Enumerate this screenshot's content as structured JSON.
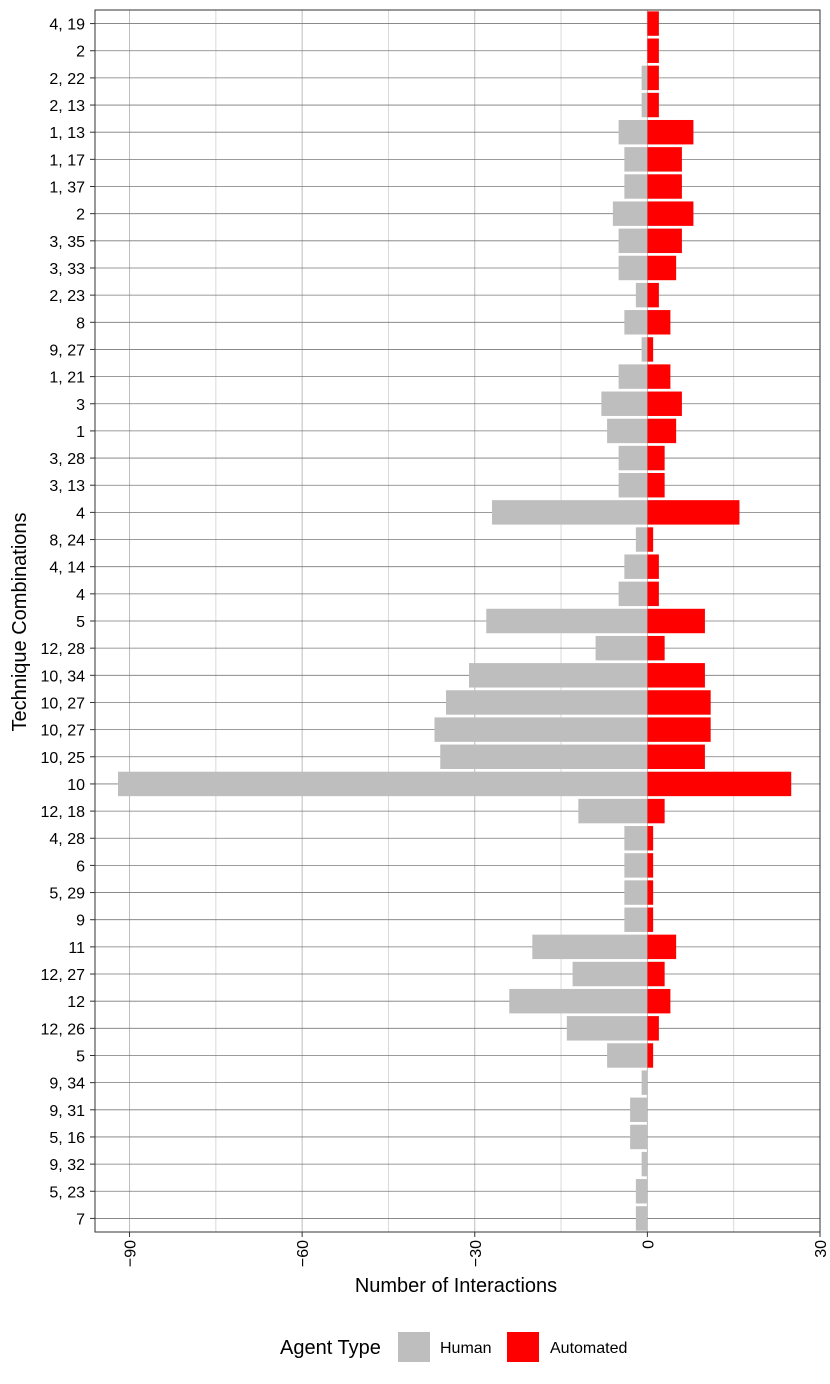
{
  "chart_data": {
    "type": "bar",
    "orientation": "horizontal",
    "layout": "diverging",
    "xlabel": "Number of Interactions",
    "ylabel": "Technique Combinations",
    "xlim": [
      -96,
      30
    ],
    "xticks": [
      -90,
      -60,
      -30,
      0,
      30
    ],
    "grid": true,
    "legend": {
      "title": "Agent Type",
      "position": "bottom",
      "items": [
        {
          "label": "Human",
          "color": "#BEBEBE"
        },
        {
          "label": "Automated",
          "color": "#FF0000"
        }
      ]
    },
    "categories": [
      "4, 19",
      "2",
      "2, 22",
      "2, 13",
      "1, 13",
      "1, 17",
      "1, 37",
      "2",
      "3, 35",
      "3, 33",
      "2, 23",
      "8",
      "9, 27",
      "1, 21",
      "3",
      "1",
      "3, 28",
      "3, 13",
      "4",
      "8, 24",
      "4, 14",
      "4",
      "5",
      "12, 28",
      "10, 34",
      "10, 27",
      "10, 27",
      "10, 25",
      "10",
      "12, 18",
      "4, 28",
      "6",
      "5, 29",
      "9",
      "11",
      "12, 27",
      "12",
      "12, 26",
      "5",
      "9, 34",
      "9, 31",
      "5, 16",
      "9, 32",
      "5, 23",
      "7"
    ],
    "series": [
      {
        "name": "Human",
        "color": "#BEBEBE",
        "values": [
          0,
          0,
          -1,
          -1,
          -5,
          -4,
          -4,
          -6,
          -5,
          -5,
          -2,
          -4,
          -1,
          -5,
          -8,
          -7,
          -5,
          -5,
          -27,
          -2,
          -4,
          -5,
          -28,
          -9,
          -31,
          -35,
          -37,
          -36,
          -92,
          -12,
          -4,
          -4,
          -4,
          -4,
          -20,
          -13,
          -24,
          -14,
          -7,
          -1,
          -3,
          -3,
          -1,
          -2,
          -2
        ]
      },
      {
        "name": "Automated",
        "color": "#FF0000",
        "values": [
          2,
          2,
          2,
          2,
          8,
          6,
          6,
          8,
          6,
          5,
          2,
          4,
          1,
          4,
          6,
          5,
          3,
          3,
          16,
          1,
          2,
          2,
          10,
          3,
          10,
          11,
          11,
          10,
          25,
          3,
          1,
          1,
          1,
          1,
          5,
          3,
          4,
          2,
          1,
          0,
          0,
          0,
          0,
          0,
          0
        ]
      }
    ]
  }
}
